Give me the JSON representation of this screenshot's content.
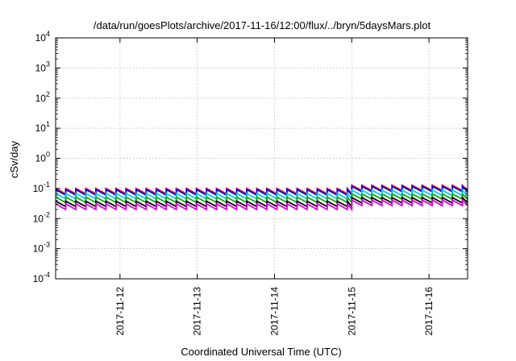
{
  "chart_data": {
    "type": "line",
    "title": "/data/run/goesPlots/archive/2017-11-16/12:00/flux/../bryn/5daysMars.plot",
    "xlabel": "Coordinated Universal Time (UTC)",
    "ylabel": "cSv/day",
    "yscale": "log",
    "ylim": [
      0.0001,
      10000
    ],
    "xlim": [
      "2017-11-11 04:00",
      "2017-11-16 12:00"
    ],
    "y_ticks": [
      {
        "value": 0.0001,
        "mantissa": "10",
        "exp": "-4"
      },
      {
        "value": 0.001,
        "mantissa": "10",
        "exp": "-3"
      },
      {
        "value": 0.01,
        "mantissa": "10",
        "exp": "-2"
      },
      {
        "value": 0.1,
        "mantissa": "10",
        "exp": "-1"
      },
      {
        "value": 1,
        "mantissa": "10",
        "exp": "0"
      },
      {
        "value": 10,
        "mantissa": "10",
        "exp": "1"
      },
      {
        "value": 100,
        "mantissa": "10",
        "exp": "2"
      },
      {
        "value": 1000,
        "mantissa": "10",
        "exp": "3"
      },
      {
        "value": 10000,
        "mantissa": "10",
        "exp": "4"
      }
    ],
    "x_ticks": [
      "2017-11-12",
      "2017-11-13",
      "2017-11-14",
      "2017-11-15",
      "2017-11-16"
    ],
    "grid": true,
    "legend": "none",
    "sawtooth_period_hours": 3.125,
    "series": [
      {
        "color": "#ff0000",
        "segments": [
          {
            "from": "2017-11-11 04:00",
            "to": "2017-11-15 00:00",
            "peak": 0.1,
            "trough": 0.066
          },
          {
            "from": "2017-11-15 00:00",
            "to": "2017-11-16 12:00",
            "peak": 0.128,
            "trough": 0.085
          }
        ]
      },
      {
        "color": "#0000ff",
        "segments": [
          {
            "from": "2017-11-11 04:00",
            "to": "2017-11-15 00:00",
            "peak": 0.092,
            "trough": 0.06
          },
          {
            "from": "2017-11-15 00:00",
            "to": "2017-11-16 12:00",
            "peak": 0.118,
            "trough": 0.078
          }
        ]
      },
      {
        "color": "#00c8ff",
        "segments": [
          {
            "from": "2017-11-11 04:00",
            "to": "2017-11-15 00:00",
            "peak": 0.068,
            "trough": 0.045
          },
          {
            "from": "2017-11-15 00:00",
            "to": "2017-11-16 12:00",
            "peak": 0.088,
            "trough": 0.058
          }
        ]
      },
      {
        "color": "#00b000",
        "segments": [
          {
            "from": "2017-11-11 04:00",
            "to": "2017-11-15 00:00",
            "peak": 0.052,
            "trough": 0.034
          },
          {
            "from": "2017-11-15 00:00",
            "to": "2017-11-16 12:00",
            "peak": 0.066,
            "trough": 0.044
          }
        ]
      },
      {
        "color": "#000000",
        "segments": [
          {
            "from": "2017-11-11 04:00",
            "to": "2017-11-15 00:00",
            "peak": 0.038,
            "trough": 0.025
          },
          {
            "from": "2017-11-15 00:00",
            "to": "2017-11-16 12:00",
            "peak": 0.05,
            "trough": 0.033
          }
        ]
      },
      {
        "color": "#e000e0",
        "segments": [
          {
            "from": "2017-11-11 04:00",
            "to": "2017-11-15 00:00",
            "peak": 0.031,
            "trough": 0.02
          },
          {
            "from": "2017-11-15 00:00",
            "to": "2017-11-16 12:00",
            "peak": 0.041,
            "trough": 0.027
          }
        ]
      }
    ]
  }
}
